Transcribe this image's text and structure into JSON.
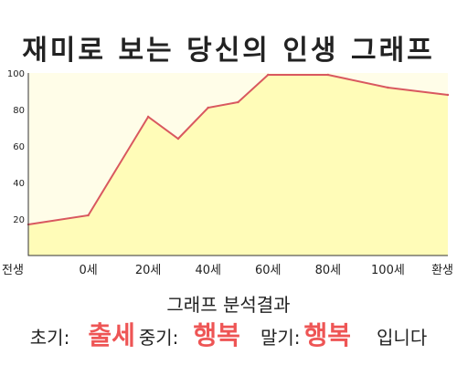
{
  "chart_data": {
    "type": "area",
    "title": "재미로 보는 당신의 인생 그래프",
    "x_labels": [
      "전생",
      "0세",
      "20세",
      "40세",
      "60세",
      "80세",
      "100세",
      "환생"
    ],
    "points": [
      {
        "x": "전생",
        "y": 17
      },
      {
        "x": "0세",
        "y": 22
      },
      {
        "x": "20세",
        "y": 76
      },
      {
        "x": "30세",
        "y": 64
      },
      {
        "x": "40세",
        "y": 81
      },
      {
        "x": "50세",
        "y": 84
      },
      {
        "x": "60세",
        "y": 99
      },
      {
        "x": "80세",
        "y": 99
      },
      {
        "x": "100세",
        "y": 92
      },
      {
        "x": "환생",
        "y": 88
      }
    ],
    "y_ticks": [
      20,
      40,
      60,
      80,
      100
    ],
    "ylim": [
      0,
      100
    ],
    "grid": false,
    "line_color": "#d9585f",
    "fill_color": "#fffcb8",
    "plot_background": "#fffde8"
  },
  "summary": {
    "heading": "그래프 분석결과",
    "early_label": "초기:",
    "early_value": "출세",
    "middle_label": "중기:",
    "middle_value": "행복",
    "late_label": "말기:",
    "late_value": "행복",
    "ending": "입니다",
    "highlight_color": "#ee5555"
  }
}
